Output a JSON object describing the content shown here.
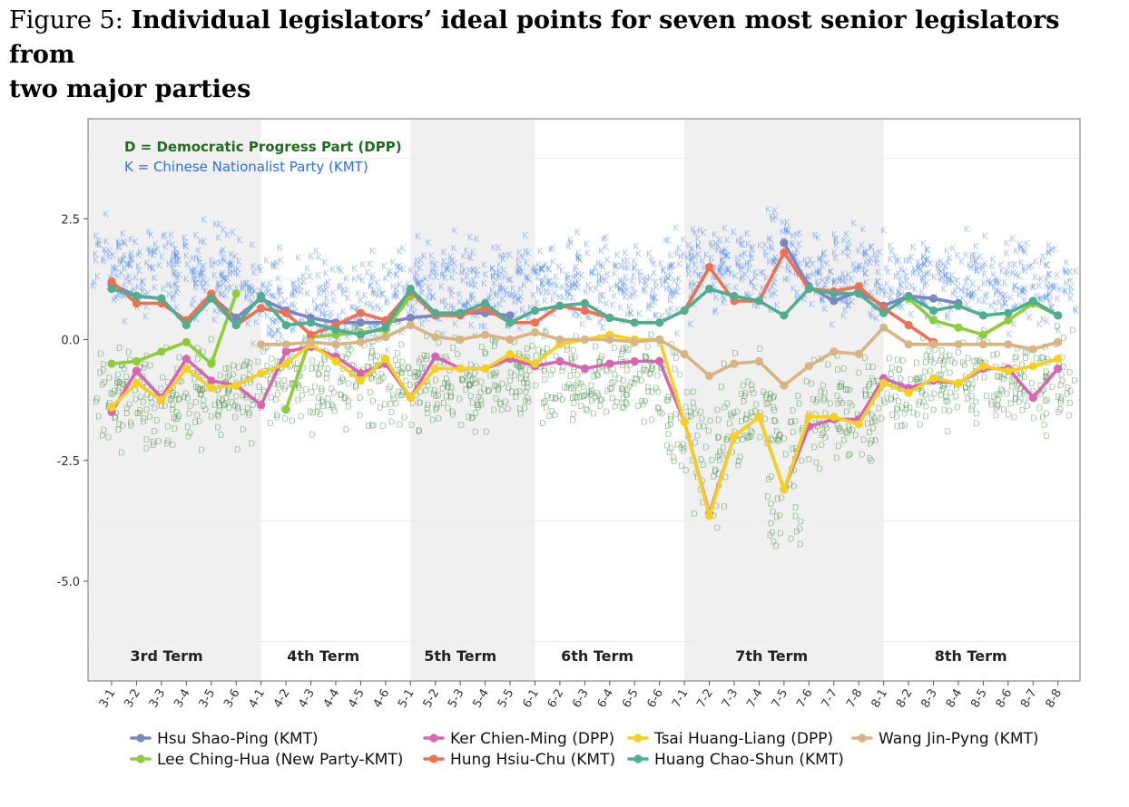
{
  "caption": {
    "prefix": "Figure 5: ",
    "title_line1": "Individual legislators’ ideal points for seven most senior legislators from",
    "title_line2": "two major parties"
  },
  "chart_data": {
    "type": "line",
    "x": [
      "3-1",
      "3-2",
      "3-3",
      "3-4",
      "3-5",
      "3-6",
      "4-1",
      "4-2",
      "4-3",
      "4-4",
      "4-5",
      "4-6",
      "5-1",
      "5-2",
      "5-3",
      "5-4",
      "5-5",
      "6-1",
      "6-2",
      "6-3",
      "6-4",
      "6-5",
      "6-6",
      "7-1",
      "7-2",
      "7-3",
      "7-4",
      "7-5",
      "7-6",
      "7-7",
      "7-8",
      "8-1",
      "8-2",
      "8-3",
      "8-4",
      "8-5",
      "8-6",
      "8-7",
      "8-8"
    ],
    "yticks": [
      2.5,
      0.0,
      -2.5,
      -5.0
    ],
    "ytick_labels": [
      "2.5",
      "0.0",
      "-2.5",
      "-5.0"
    ],
    "ylim": [
      -6.9,
      4.6
    ],
    "grid": true,
    "terms": [
      {
        "label": "3rd Term",
        "from": "3-1",
        "to": "3-6",
        "shaded": true
      },
      {
        "label": "4th Term",
        "from": "4-1",
        "to": "4-6",
        "shaded": false
      },
      {
        "label": "5th Term",
        "from": "5-1",
        "to": "5-5",
        "shaded": true
      },
      {
        "label": "6th Term",
        "from": "6-1",
        "to": "6-6",
        "shaded": false
      },
      {
        "label": "7th Term",
        "from": "7-1",
        "to": "7-8",
        "shaded": true
      },
      {
        "label": "8th Term",
        "from": "8-1",
        "to": "8-8",
        "shaded": false
      }
    ],
    "annotation": {
      "dpp": "D =  Democratic Progress Part (DPP)",
      "kmt": "K =  Chinese Nationalist Party (KMT)"
    },
    "background_clouds": {
      "K_center": [
        1.5,
        1.45,
        1.4,
        1.35,
        1.3,
        1.25,
        0.85,
        0.8,
        0.75,
        0.7,
        0.75,
        0.8,
        0.95,
        1.0,
        1.05,
        1.05,
        1.0,
        1.1,
        1.15,
        1.15,
        1.1,
        1.05,
        1.0,
        1.4,
        1.6,
        1.4,
        1.35,
        1.7,
        1.4,
        1.3,
        1.3,
        1.1,
        1.2,
        1.15,
        1.1,
        1.1,
        1.15,
        1.2,
        1.1
      ],
      "D_center": [
        -1.35,
        -1.3,
        -1.25,
        -1.25,
        -1.2,
        -1.15,
        -1.0,
        -0.95,
        -0.8,
        -0.75,
        -0.75,
        -0.8,
        -1.0,
        -1.0,
        -1.0,
        -1.0,
        -0.95,
        -0.95,
        -1.0,
        -1.0,
        -0.95,
        -0.9,
        -0.9,
        -1.9,
        -2.6,
        -1.8,
        -1.6,
        -3.2,
        -1.7,
        -1.6,
        -1.6,
        -1.0,
        -1.1,
        -1.0,
        -0.9,
        -0.9,
        -0.9,
        -1.0,
        -0.9
      ]
    },
    "series": [
      {
        "name": "Hsu Shao-Ping (KMT)",
        "color": "#7b86c0",
        "values": [
          1.15,
          0.9,
          0.85,
          null,
          0.9,
          0.45,
          0.85,
          0.6,
          0.45,
          0.35,
          0.35,
          0.35,
          0.45,
          0.5,
          0.55,
          0.55,
          0.5,
          null,
          null,
          null,
          null,
          null,
          null,
          null,
          null,
          null,
          null,
          2.0,
          1.1,
          0.8,
          1.0,
          0.7,
          0.9,
          0.85,
          0.75,
          null,
          null,
          null,
          null
        ]
      },
      {
        "name": "Lee Ching-Hua (New Party-KMT)",
        "color": "#8fcc3a",
        "values": [
          -0.5,
          -0.45,
          -0.25,
          -0.05,
          -0.5,
          0.95,
          null,
          -1.45,
          0.05,
          0.1,
          0.15,
          0.2,
          0.9,
          null,
          null,
          null,
          null,
          null,
          null,
          null,
          null,
          null,
          null,
          null,
          null,
          null,
          null,
          null,
          null,
          null,
          null,
          null,
          0.85,
          0.4,
          0.25,
          0.1,
          0.4,
          0.75,
          0.5
        ]
      },
      {
        "name": "Ker Chien-Ming (DPP)",
        "color": "#d964b4",
        "values": [
          -1.5,
          -0.65,
          -1.2,
          -0.4,
          -0.85,
          -0.95,
          -1.35,
          -0.25,
          -0.15,
          -0.35,
          -0.7,
          -0.5,
          -1.2,
          -0.35,
          -0.6,
          -0.6,
          -0.4,
          -0.55,
          -0.45,
          -0.6,
          -0.5,
          -0.45,
          -0.45,
          -1.7,
          -3.6,
          -2.0,
          -1.6,
          -3.1,
          -1.8,
          -1.65,
          -1.65,
          -0.8,
          -1.0,
          -0.85,
          -0.9,
          -0.6,
          -0.6,
          -1.2,
          -0.6
        ]
      },
      {
        "name": "Hung Hsiu-Chu (KMT)",
        "color": "#f07050",
        "values": [
          1.2,
          0.75,
          0.75,
          0.4,
          0.95,
          0.3,
          0.65,
          0.55,
          0.1,
          0.3,
          0.55,
          0.4,
          1.0,
          0.5,
          0.5,
          0.65,
          0.35,
          0.35,
          0.7,
          0.6,
          0.45,
          0.35,
          0.35,
          0.6,
          1.5,
          0.8,
          0.8,
          1.8,
          1.05,
          1.0,
          1.1,
          0.65,
          0.3,
          -0.05,
          null,
          null,
          null,
          null,
          null
        ]
      },
      {
        "name": "Tsai Huang-Liang (DPP)",
        "color": "#f5d020",
        "values": [
          -1.4,
          -0.9,
          -1.25,
          -0.6,
          -1.0,
          -0.95,
          -0.7,
          -0.5,
          -0.1,
          -0.45,
          -0.85,
          -0.4,
          -1.2,
          -0.6,
          -0.6,
          -0.6,
          -0.3,
          -0.5,
          -0.1,
          0.0,
          0.1,
          0.0,
          0.0,
          -1.7,
          -3.65,
          -2.0,
          -1.6,
          -3.1,
          -1.6,
          -1.6,
          -1.75,
          -0.9,
          -1.1,
          -0.8,
          -0.9,
          -0.55,
          -0.65,
          -0.55,
          -0.4
        ]
      },
      {
        "name": "Huang Chao-Shun (KMT)",
        "color": "#4fae90",
        "values": [
          1.05,
          0.9,
          0.85,
          0.3,
          0.85,
          0.3,
          0.9,
          0.3,
          0.35,
          0.2,
          0.1,
          0.25,
          1.05,
          0.55,
          0.55,
          0.75,
          0.35,
          0.6,
          0.7,
          0.75,
          0.45,
          0.35,
          0.35,
          0.6,
          1.05,
          0.9,
          0.8,
          0.5,
          1.05,
          0.95,
          0.95,
          0.55,
          0.9,
          0.6,
          0.7,
          0.5,
          0.55,
          0.8,
          0.5
        ]
      },
      {
        "name": "Wang Jin-Pyng (KMT)",
        "color": "#d8b484",
        "values": [
          null,
          null,
          null,
          null,
          null,
          null,
          -0.1,
          -0.1,
          -0.05,
          -0.1,
          -0.05,
          0.05,
          0.3,
          0.05,
          0.0,
          0.1,
          0.0,
          0.15,
          0.0,
          0.0,
          0.0,
          -0.05,
          0.0,
          -0.3,
          -0.75,
          -0.5,
          -0.45,
          -0.95,
          -0.55,
          -0.25,
          -0.3,
          0.25,
          -0.1,
          -0.1,
          -0.1,
          -0.1,
          -0.1,
          -0.2,
          -0.05
        ]
      }
    ],
    "legend": {
      "placement": "bottom",
      "rows": [
        [
          "Hsu Shao-Ping (KMT)",
          "Ker Chien-Ming (DPP)",
          "Tsai Huang-Liang (DPP)",
          "Wang Jin-Pyng (KMT)"
        ],
        [
          "Lee Ching-Hua (New Party-KMT)",
          "Hung Hsiu-Chu (KMT)",
          "Huang Chao-Shun (KMT)"
        ]
      ]
    }
  }
}
